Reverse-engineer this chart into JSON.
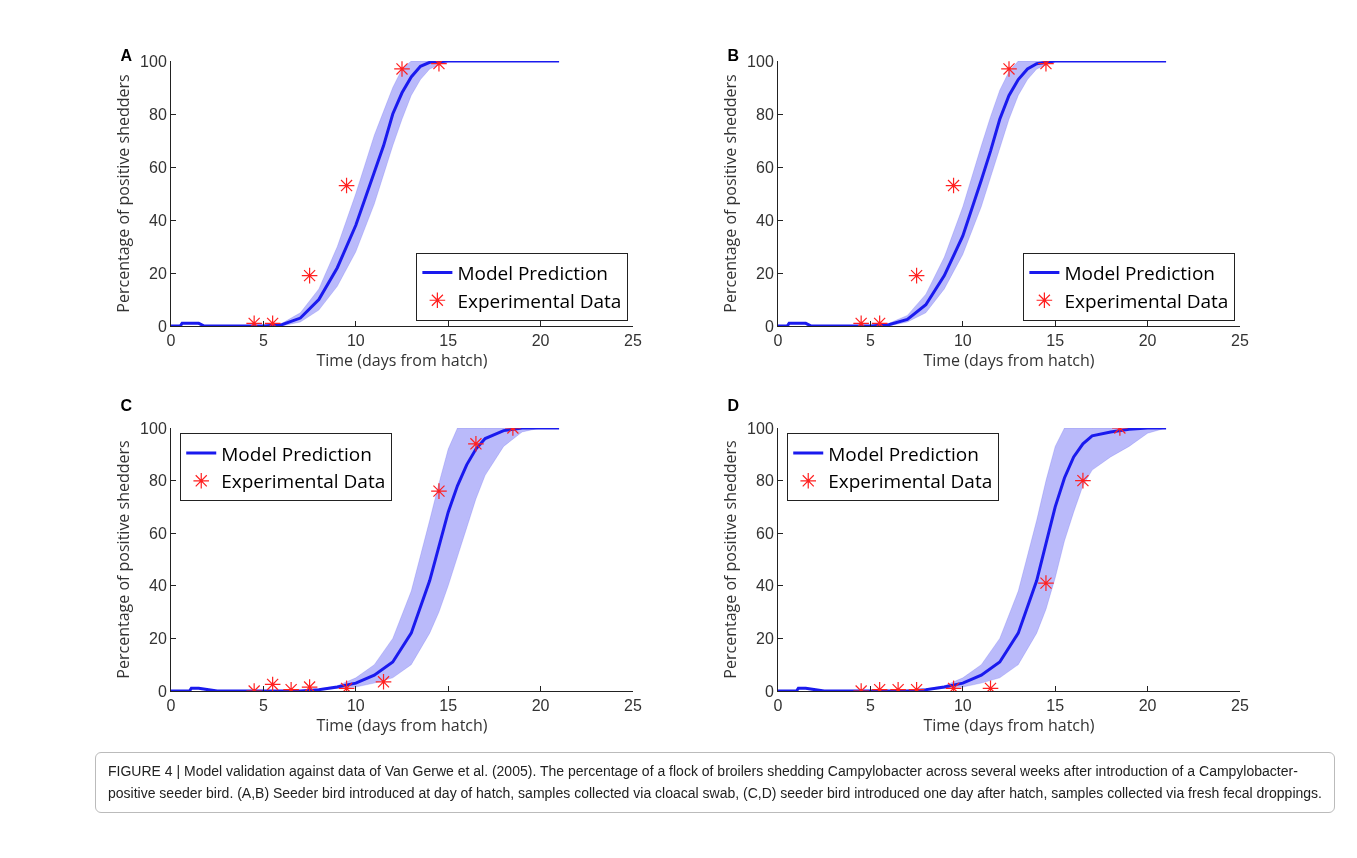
{
  "chart_data": [
    {
      "type": "line",
      "title": "A",
      "xlabel": "Time (days from hatch)",
      "ylabel": "Percentage of positive shedders",
      "xlim": [
        0,
        25
      ],
      "xticks": [
        0,
        5,
        10,
        15,
        20,
        25
      ],
      "ylim": [
        0,
        100
      ],
      "yticks": [
        0,
        20,
        40,
        60,
        80,
        100
      ],
      "grid": false,
      "legend": "bottom right",
      "series": [
        {
          "name": "Model Prediction",
          "type": "line",
          "marker": "none",
          "color": "#1a1aee",
          "x": [
            0,
            0.5,
            0.6,
            1.5,
            1.8,
            5,
            6,
            7,
            8,
            9,
            10,
            11,
            11.5,
            12,
            12.5,
            13,
            13.5,
            14,
            15,
            21
          ],
          "values": [
            0,
            0,
            1,
            1,
            0,
            0,
            0.5,
            3,
            10,
            22,
            38,
            58,
            68,
            80,
            88,
            94,
            98,
            99.5,
            100,
            100
          ],
          "lower": [
            0,
            0,
            1,
            1,
            0,
            0,
            0,
            1.5,
            6,
            15,
            28,
            46,
            57,
            68,
            78,
            87,
            93,
            97,
            100,
            100
          ],
          "upper": [
            0,
            0,
            1,
            1,
            0,
            0,
            1,
            5,
            14,
            30,
            50,
            72,
            81,
            90,
            97,
            100,
            100,
            100,
            100,
            100
          ]
        },
        {
          "name": "Experimental Data",
          "type": "scatter",
          "color": "#ff2020",
          "marker": "cross",
          "x": [
            4.5,
            5.5,
            7.5,
            9.5,
            12.5,
            14.5
          ],
          "values": [
            1,
            1,
            19,
            53,
            97,
            99
          ]
        }
      ]
    },
    {
      "type": "line",
      "title": "B",
      "xlabel": "Time (days from hatch)",
      "ylabel": "Percentage of positive shedders",
      "xlim": [
        0,
        25
      ],
      "xticks": [
        0,
        5,
        10,
        15,
        20,
        25
      ],
      "ylim": [
        0,
        100
      ],
      "yticks": [
        0,
        20,
        40,
        60,
        80,
        100
      ],
      "grid": false,
      "legend": "bottom right",
      "series": [
        {
          "name": "Model Prediction",
          "type": "line",
          "marker": "none",
          "color": "#1a1aee",
          "x": [
            0,
            0.5,
            0.6,
            1.5,
            1.8,
            5,
            6,
            7,
            8,
            9,
            10,
            11,
            11.5,
            12,
            12.5,
            13,
            13.5,
            14,
            15,
            21
          ],
          "values": [
            0,
            0,
            1,
            1,
            0,
            0,
            0.5,
            2.5,
            8,
            19,
            34,
            55,
            66,
            78,
            87,
            93,
            97,
            99,
            100,
            100
          ],
          "lower": [
            0,
            0,
            1,
            1,
            0,
            0,
            0,
            1.5,
            5,
            14,
            27,
            45,
            56,
            67,
            78,
            87,
            93,
            97,
            100,
            100
          ],
          "upper": [
            0,
            0,
            1,
            1,
            0,
            0,
            1,
            4,
            12,
            26,
            45,
            68,
            79,
            89,
            96,
            100,
            100,
            100,
            100,
            100
          ]
        },
        {
          "name": "Experimental Data",
          "type": "scatter",
          "color": "#ff2020",
          "marker": "cross",
          "x": [
            4.5,
            5.5,
            7.5,
            9.5,
            12.5,
            14.5
          ],
          "values": [
            1,
            1,
            19,
            53,
            97,
            99
          ]
        }
      ]
    },
    {
      "type": "line",
      "title": "C",
      "xlabel": "Time (days from hatch)",
      "ylabel": "Percentage of positive shedders",
      "xlim": [
        0,
        25
      ],
      "xticks": [
        0,
        5,
        10,
        15,
        20,
        25
      ],
      "ylim": [
        0,
        100
      ],
      "yticks": [
        0,
        20,
        40,
        60,
        80,
        100
      ],
      "grid": false,
      "legend": "top left",
      "series": [
        {
          "name": "Model Prediction",
          "type": "line",
          "marker": "none",
          "color": "#1a1aee",
          "x": [
            0,
            1,
            1.1,
            1.5,
            2.5,
            7,
            8,
            9,
            10,
            11,
            12,
            13,
            14,
            14.5,
            15,
            15.5,
            16,
            16.5,
            17,
            18,
            19,
            20,
            21
          ],
          "values": [
            0,
            0,
            1,
            1,
            0,
            0,
            0.5,
            1.5,
            3,
            6,
            11,
            22,
            42,
            55,
            68,
            78,
            86,
            92,
            96,
            99,
            100,
            100,
            100
          ],
          "lower": [
            0,
            0,
            1,
            1,
            0,
            0,
            0.3,
            1,
            1.5,
            3,
            5,
            10,
            22,
            30,
            40,
            51,
            62,
            73,
            82,
            93,
            98.5,
            100,
            100
          ],
          "upper": [
            0,
            0,
            1,
            1,
            0,
            0,
            0.8,
            2,
            5,
            10,
            20,
            38,
            65,
            79,
            92,
            100,
            100,
            100,
            100,
            100,
            100,
            100,
            100
          ]
        },
        {
          "name": "Experimental Data",
          "type": "scatter",
          "color": "#ff2020",
          "marker": "cross",
          "x": [
            4.5,
            5.5,
            6.5,
            7.5,
            9.5,
            11.5,
            14.5,
            16.5,
            18.5
          ],
          "values": [
            0,
            2.5,
            0.5,
            1.5,
            1,
            3.5,
            76,
            94,
            100
          ]
        }
      ]
    },
    {
      "type": "line",
      "title": "D",
      "xlabel": "Time (days from hatch)",
      "ylabel": "Percentage of positive shedders",
      "xlim": [
        0,
        25
      ],
      "xticks": [
        0,
        5,
        10,
        15,
        20,
        25
      ],
      "ylim": [
        0,
        100
      ],
      "yticks": [
        0,
        20,
        40,
        60,
        80,
        100
      ],
      "grid": false,
      "legend": "top left",
      "annotations": [
        "FIGURE 4 | Model validation against data of Van Gerwe et al. (2005). The percentage of a flock of broilers shedding Campylobacter across several weeks after introduction of a Campylobacter-positive seeder bird. (A,B) Seeder bird introduced at day of hatch, samples collected via cloacal swab, (C,D) seeder bird introduced one day after hatch, samples collected via fresh fecal droppings."
      ],
      "series": [
        {
          "name": "Model Prediction",
          "type": "line",
          "marker": "none",
          "color": "#1a1aee",
          "x": [
            0,
            1,
            1.1,
            1.5,
            2.5,
            7,
            8,
            9,
            10,
            11,
            12,
            13,
            14,
            14.5,
            15,
            15.5,
            16,
            16.5,
            17,
            18,
            19,
            20,
            21
          ],
          "values": [
            0,
            0,
            1,
            1,
            0,
            0,
            0.5,
            1.5,
            3,
            6,
            11,
            22,
            42,
            56,
            70,
            81,
            89,
            94,
            97,
            98.5,
            99.5,
            100,
            100
          ],
          "lower": [
            0,
            0,
            1,
            1,
            0,
            0,
            0.3,
            1,
            1.5,
            3,
            5,
            10,
            22,
            31,
            43,
            57,
            68,
            78,
            84,
            89,
            93,
            98,
            100
          ],
          "upper": [
            0,
            0,
            1,
            1,
            0,
            0,
            0.8,
            2,
            5,
            10,
            20,
            38,
            65,
            80,
            93,
            100,
            100,
            100,
            100,
            100,
            100,
            100,
            100
          ]
        },
        {
          "name": "Experimental Data",
          "type": "scatter",
          "color": "#ff2020",
          "marker": "cross",
          "x": [
            4.5,
            5.5,
            6.5,
            7.5,
            9.5,
            11.5,
            14.5,
            16.5,
            18.5
          ],
          "values": [
            0,
            0.5,
            0.5,
            0.5,
            1,
            1,
            41,
            80,
            100
          ]
        }
      ]
    }
  ]
}
